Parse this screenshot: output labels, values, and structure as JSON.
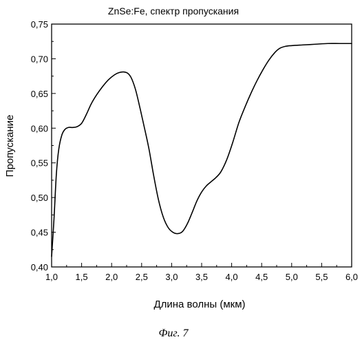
{
  "chart_data": {
    "type": "line",
    "title": "ZnSe:Fe, спектр пропускания",
    "xlabel": "Длина волны (мкм)",
    "ylabel": "Пропускание",
    "xlim": [
      1.0,
      6.0
    ],
    "ylim": [
      0.4,
      0.75
    ],
    "xticks": [
      "1,0",
      "1,5",
      "2,0",
      "2,5",
      "3,0",
      "3,5",
      "4,0",
      "4,5",
      "5,0",
      "5,5",
      "6,0"
    ],
    "xtick_values": [
      1.0,
      1.5,
      2.0,
      2.5,
      3.0,
      3.5,
      4.0,
      4.5,
      5.0,
      5.5,
      6.0
    ],
    "yticks": [
      "0,40",
      "0,45",
      "0,50",
      "0,55",
      "0,60",
      "0,65",
      "0,70",
      "0,75"
    ],
    "ytick_values": [
      0.4,
      0.45,
      0.5,
      0.55,
      0.6,
      0.65,
      0.7,
      0.75
    ],
    "grid": false,
    "series": [
      {
        "x": [
          1.0,
          1.04,
          1.08,
          1.12,
          1.17,
          1.22,
          1.28,
          1.35,
          1.42,
          1.5,
          1.58,
          1.66,
          1.75,
          1.85,
          1.95,
          2.05,
          2.12,
          2.2,
          2.27,
          2.33,
          2.4,
          2.47,
          2.54,
          2.62,
          2.7,
          2.78,
          2.86,
          2.94,
          3.02,
          3.1,
          3.18,
          3.26,
          3.34,
          3.42,
          3.5,
          3.58,
          3.66,
          3.74,
          3.82,
          3.92,
          4.02,
          4.12,
          4.22,
          4.32,
          4.42,
          4.52,
          4.62,
          4.72,
          4.8,
          4.9,
          5.0,
          5.2,
          5.4,
          5.6,
          5.8,
          6.0
        ],
        "y": [
          0.415,
          0.47,
          0.535,
          0.57,
          0.59,
          0.598,
          0.601,
          0.601,
          0.602,
          0.607,
          0.62,
          0.635,
          0.648,
          0.66,
          0.67,
          0.677,
          0.68,
          0.681,
          0.679,
          0.672,
          0.655,
          0.63,
          0.603,
          0.571,
          0.532,
          0.497,
          0.472,
          0.457,
          0.45,
          0.448,
          0.451,
          0.462,
          0.478,
          0.495,
          0.508,
          0.517,
          0.523,
          0.529,
          0.537,
          0.555,
          0.58,
          0.608,
          0.63,
          0.65,
          0.668,
          0.684,
          0.698,
          0.709,
          0.715,
          0.718,
          0.719,
          0.72,
          0.721,
          0.722,
          0.722,
          0.722
        ],
        "color": "#000000"
      }
    ]
  },
  "figure": {
    "caption": "Фиг. 7"
  }
}
